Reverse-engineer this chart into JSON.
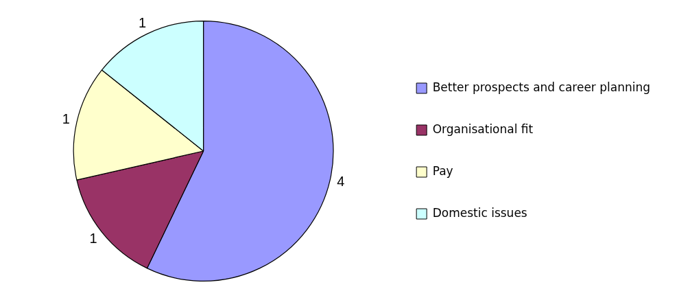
{
  "chart_data": {
    "type": "pie",
    "categories": [
      "Better prospects and career planning",
      "Organisational fit",
      "Pay",
      "Domestic issues"
    ],
    "values": [
      4,
      1,
      1,
      1
    ],
    "colors": [
      "#9999ff",
      "#993366",
      "#ffffcc",
      "#ccffff"
    ],
    "data_labels": true,
    "legend": "right"
  }
}
